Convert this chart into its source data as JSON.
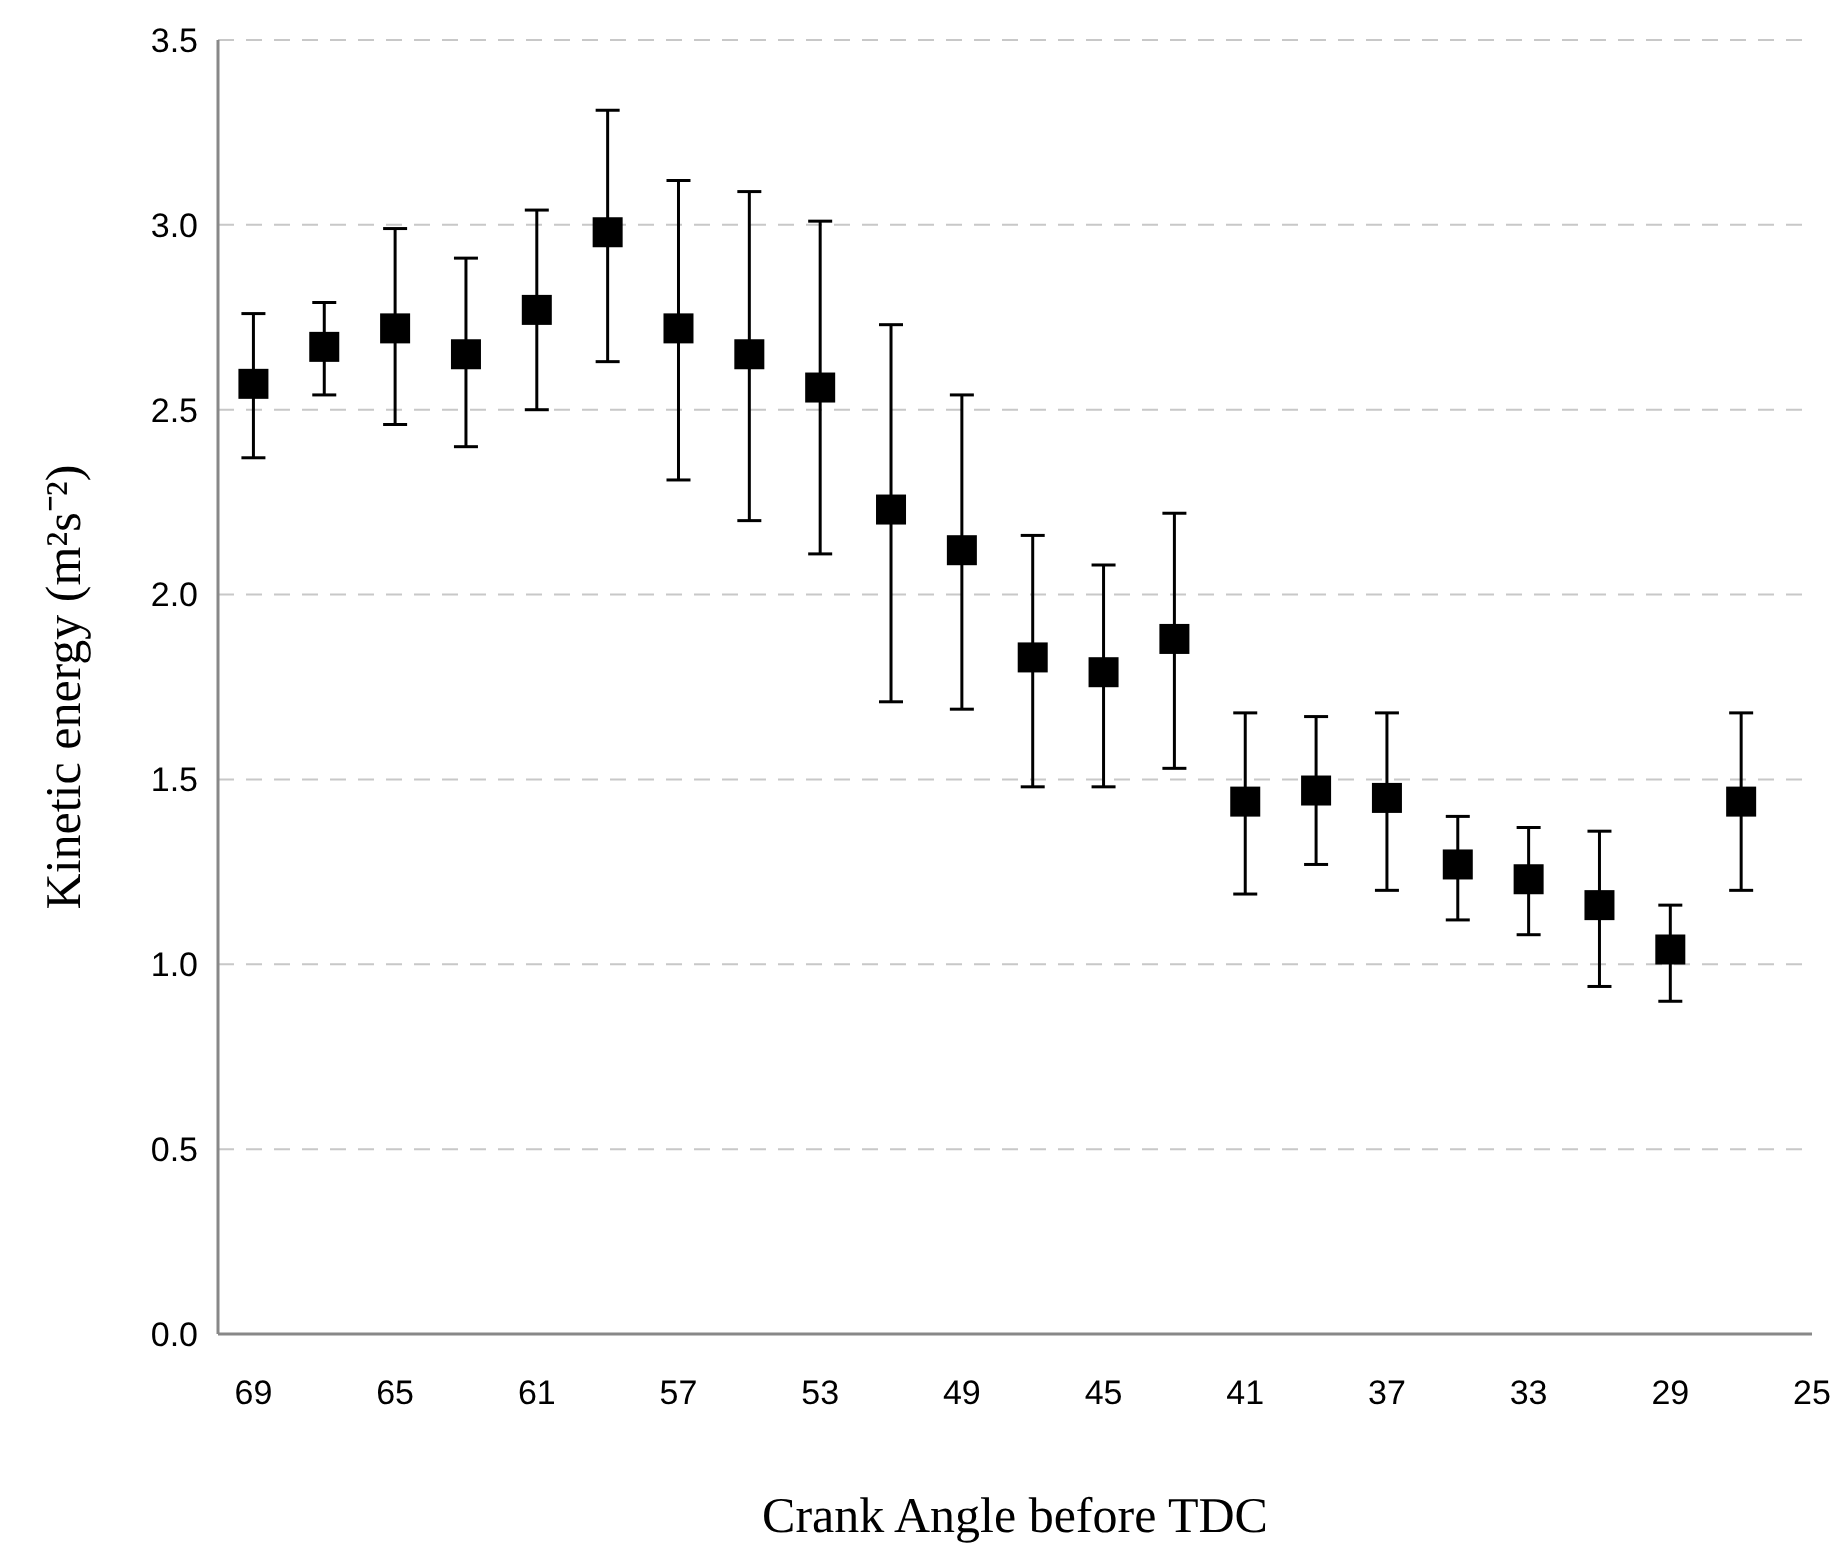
{
  "chart_data": {
    "type": "scatter",
    "xlabel": "Crank Angle before TDC",
    "ylabel": "Kinetic energy (m²s⁻²)",
    "x": [
      69,
      67,
      65,
      63,
      61,
      59,
      57,
      55,
      53,
      51,
      49,
      47,
      45,
      43,
      41,
      39,
      37,
      35,
      33,
      31,
      29,
      27
    ],
    "values": [
      2.57,
      2.67,
      2.72,
      2.65,
      2.77,
      2.98,
      2.72,
      2.65,
      2.56,
      2.23,
      2.12,
      1.83,
      1.79,
      1.88,
      1.44,
      1.47,
      1.45,
      1.27,
      1.23,
      1.16,
      1.04,
      1.44
    ],
    "errors": [
      [
        2.37,
        2.76
      ],
      [
        2.54,
        2.79
      ],
      [
        2.46,
        2.99
      ],
      [
        2.4,
        2.91
      ],
      [
        2.5,
        3.04
      ],
      [
        2.63,
        3.31
      ],
      [
        2.31,
        3.12
      ],
      [
        2.2,
        3.09
      ],
      [
        2.11,
        3.01
      ],
      [
        1.71,
        2.73
      ],
      [
        1.69,
        2.54
      ],
      [
        1.48,
        2.16
      ],
      [
        1.48,
        2.08
      ],
      [
        1.53,
        2.22
      ],
      [
        1.19,
        1.68
      ],
      [
        1.27,
        1.67
      ],
      [
        1.2,
        1.68
      ],
      [
        1.12,
        1.4
      ],
      [
        1.08,
        1.37
      ],
      [
        0.94,
        1.36
      ],
      [
        0.9,
        1.16
      ],
      [
        1.2,
        1.68
      ]
    ],
    "color": "#000000",
    "marker": "square",
    "xlim": [
      70,
      25
    ],
    "xticks": [
      69,
      65,
      61,
      57,
      53,
      49,
      45,
      41,
      37,
      33,
      29,
      25
    ],
    "ylim": [
      0,
      3.5
    ],
    "yticks": [
      {
        "value": 0,
        "label": "0.0"
      },
      {
        "value": 0.5,
        "label": "0.5"
      },
      {
        "value": 1,
        "label": "1.0"
      },
      {
        "value": 1.5,
        "label": "1.5"
      },
      {
        "value": 2,
        "label": "2.0"
      },
      {
        "value": 2.5,
        "label": "2.5"
      },
      {
        "value": 3,
        "label": "3.0"
      },
      {
        "value": 3.5,
        "label": "3.5"
      }
    ],
    "grid": "y"
  }
}
